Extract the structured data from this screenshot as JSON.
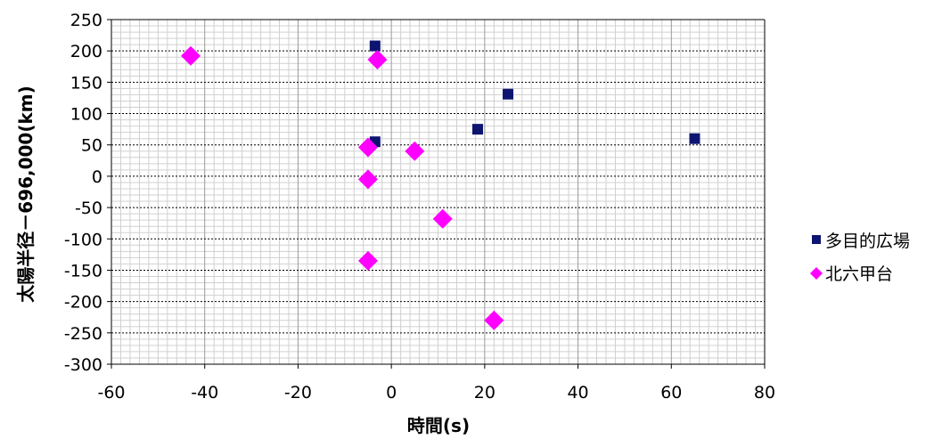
{
  "chart_data": {
    "type": "scatter",
    "xlabel": "時間(s)",
    "ylabel": "太陽半径－696,000(km)",
    "xlim": [
      -60,
      80
    ],
    "ylim": [
      -300,
      250
    ],
    "x_major_step": 20,
    "x_minor_step": 2,
    "y_major_step": 50,
    "y_minor_step": 10,
    "grid": true,
    "legend_position": "right",
    "series": [
      {
        "name": "多目的広場",
        "marker": "square",
        "color": "#0d1570",
        "points": [
          {
            "x": -3.5,
            "y": 208
          },
          {
            "x": -3.5,
            "y": 55
          },
          {
            "x": 18.5,
            "y": 75
          },
          {
            "x": 25,
            "y": 131
          },
          {
            "x": 65,
            "y": 60
          }
        ]
      },
      {
        "name": "北六甲台",
        "marker": "diamond",
        "color": "#ff00ff",
        "points": [
          {
            "x": -43,
            "y": 192
          },
          {
            "x": -3,
            "y": 186
          },
          {
            "x": -5,
            "y": 46
          },
          {
            "x": 5,
            "y": 40
          },
          {
            "x": -5,
            "y": -5
          },
          {
            "x": 11,
            "y": -68
          },
          {
            "x": -5,
            "y": -135
          },
          {
            "x": 22,
            "y": -230
          }
        ]
      }
    ]
  }
}
